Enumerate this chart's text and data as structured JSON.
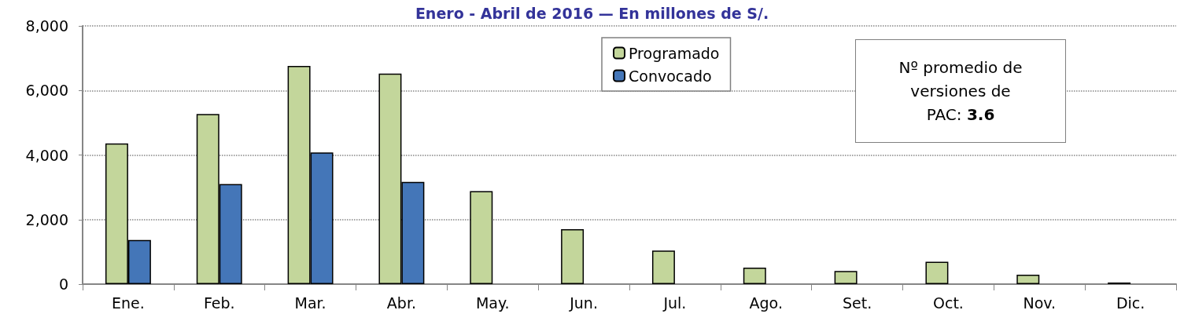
{
  "chart_data": {
    "type": "bar",
    "title": "Enero - Abril de 2016 — En millones de S/.",
    "categories": [
      "Ene.",
      "Feb.",
      "Mar.",
      "Abr.",
      "May.",
      "Jun.",
      "Jul.",
      "Ago.",
      "Set.",
      "Oct.",
      "Nov.",
      "Dic."
    ],
    "series": [
      {
        "name": "Programado",
        "color": "#c3d69b",
        "values": [
          4360,
          5270,
          6760,
          6520,
          2880,
          1700,
          1040,
          510,
          410,
          690,
          290,
          50
        ]
      },
      {
        "name": "Convocado",
        "color": "#4476b8",
        "values": [
          1370,
          3100,
          4080,
          3170,
          null,
          null,
          null,
          null,
          null,
          null,
          null,
          null
        ]
      }
    ],
    "ylim": [
      0,
      8000
    ],
    "yticks": [
      0,
      {
        "value": 2000,
        "label": "2,000"
      },
      {
        "value": 4000,
        "label": "4,000"
      },
      {
        "value": 6000,
        "label": "6,000"
      },
      {
        "value": 8000,
        "label": "8,000"
      }
    ],
    "grid": "y",
    "legend": "top",
    "annotations": [
      "Nº promedio de versiones de PAC:",
      "3.6"
    ]
  }
}
